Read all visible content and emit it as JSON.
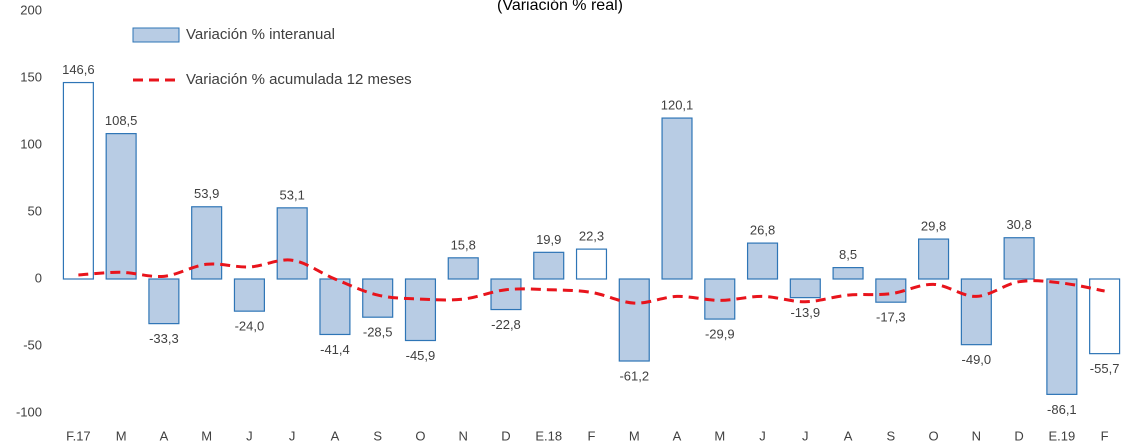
{
  "chart_data": {
    "type": "bar",
    "title": "(Variación % real)",
    "categories": [
      "F.17",
      "M",
      "A",
      "M",
      "J",
      "J",
      "A",
      "S",
      "O",
      "N",
      "D",
      "E.18",
      "F",
      "M",
      "A",
      "M",
      "J",
      "J",
      "A",
      "S",
      "O",
      "N",
      "D",
      "E.19",
      "F"
    ],
    "series": [
      {
        "name": "Variación % interanual",
        "type": "bar",
        "color": "#b8cce4",
        "edge_color": "#2e75b6",
        "colors": [
          "#ffffff",
          "#b8cce4",
          "#b8cce4",
          "#b8cce4",
          "#b8cce4",
          "#b8cce4",
          "#b8cce4",
          "#b8cce4",
          "#b8cce4",
          "#b8cce4",
          "#b8cce4",
          "#b8cce4",
          "#ffffff",
          "#b8cce4",
          "#b8cce4",
          "#b8cce4",
          "#b8cce4",
          "#b8cce4",
          "#b8cce4",
          "#b8cce4",
          "#b8cce4",
          "#b8cce4",
          "#b8cce4",
          "#b8cce4",
          "#ffffff"
        ],
        "values": [
          146.6,
          108.5,
          -33.3,
          53.9,
          -24.0,
          53.1,
          -41.4,
          -28.5,
          -45.9,
          15.8,
          -22.8,
          19.9,
          22.3,
          -61.2,
          120.1,
          -29.9,
          26.8,
          -13.9,
          8.5,
          -17.3,
          29.8,
          -49.0,
          30.8,
          -86.1,
          -55.7
        ],
        "value_labels": [
          "146,6",
          "108,5",
          "-33,3",
          "53,9",
          "-24,0",
          "53,1",
          "-41,4",
          "-28,5",
          "-45,9",
          "15,8",
          "-22,8",
          "19,9",
          "22,3",
          "-61,2",
          "120,1",
          "-29,9",
          "26,8",
          "-13,9",
          "8,5",
          "-17,3",
          "29,8",
          "-49,0",
          "30,8",
          "-86,1",
          "-55,7"
        ]
      },
      {
        "name": "Variación % acumulada 12 meses",
        "type": "line",
        "color": "#e8141c",
        "dashed": true,
        "values": [
          3,
          5,
          2,
          11,
          9,
          14,
          0,
          -12,
          -15,
          -15,
          -8,
          -8,
          -10,
          -18,
          -13,
          -16,
          -13,
          -17,
          -12,
          -11,
          -4,
          -13,
          -2,
          -3,
          -9
        ]
      }
    ],
    "ylim": [
      -100,
      200
    ],
    "yticks": [
      -100,
      -50,
      0,
      50,
      100,
      150,
      200
    ],
    "grid": false
  }
}
